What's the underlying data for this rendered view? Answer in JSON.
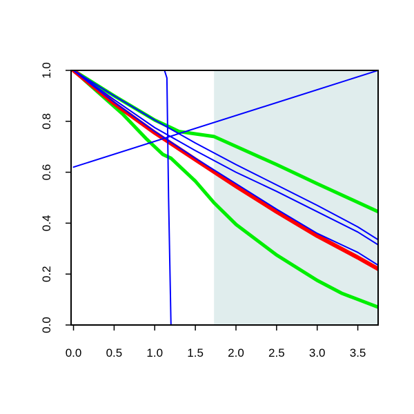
{
  "chart_data": {
    "type": "line",
    "title": "",
    "xlabel": "",
    "ylabel": "",
    "xlim": [
      -0.03,
      3.75
    ],
    "ylim": [
      0,
      1
    ],
    "x_ticks": [
      0,
      0.5,
      1,
      1.5,
      2,
      2.5,
      3,
      3.5
    ],
    "x_tick_labels": [
      "0.0",
      "0.5",
      "1.0",
      "1.5",
      "2.0",
      "2.5",
      "3.0",
      "3.5"
    ],
    "y_ticks": [
      0,
      0.2,
      0.4,
      0.6,
      0.8,
      1
    ],
    "y_tick_labels": [
      "0.0",
      "0.2",
      "0.4",
      "0.6",
      "0.8",
      "1.0"
    ],
    "grid": false,
    "legend": "none",
    "shaded_region": {
      "x_from": 1.73,
      "x_to": 3.75,
      "color": "#e0eded"
    },
    "series": [
      {
        "color": "#00ee00",
        "width": 5,
        "points": [
          [
            0,
            1
          ],
          [
            0.5,
            0.9
          ],
          [
            1,
            0.805
          ],
          [
            1.3,
            0.76
          ],
          [
            1.73,
            0.74
          ],
          [
            2.5,
            0.63
          ],
          [
            3,
            0.555
          ],
          [
            3.75,
            0.445
          ]
        ]
      },
      {
        "color": "#00ee00",
        "width": 5,
        "points": [
          [
            0,
            1
          ],
          [
            0.3,
            0.915
          ],
          [
            0.6,
            0.83
          ],
          [
            0.9,
            0.73
          ],
          [
            1.1,
            0.67
          ],
          [
            1.2,
            0.655
          ],
          [
            1.5,
            0.565
          ],
          [
            1.73,
            0.48
          ],
          [
            2,
            0.395
          ],
          [
            2.5,
            0.275
          ],
          [
            3,
            0.175
          ],
          [
            3.3,
            0.125
          ],
          [
            3.75,
            0.07
          ]
        ]
      },
      {
        "color": "#ff0000",
        "width": 6,
        "points": [
          [
            0,
            1
          ],
          [
            0.5,
            0.87
          ],
          [
            1,
            0.755
          ],
          [
            1.5,
            0.65
          ],
          [
            2,
            0.545
          ],
          [
            2.5,
            0.445
          ],
          [
            3,
            0.35
          ],
          [
            3.5,
            0.265
          ],
          [
            3.75,
            0.22
          ]
        ]
      },
      {
        "color": "#0000ff",
        "width": 2,
        "points": [
          [
            0,
            1
          ],
          [
            0.5,
            0.9
          ],
          [
            1,
            0.805
          ],
          [
            1.5,
            0.715
          ],
          [
            2,
            0.63
          ],
          [
            2.5,
            0.55
          ],
          [
            3,
            0.47
          ],
          [
            3.5,
            0.385
          ],
          [
            3.75,
            0.335
          ]
        ]
      },
      {
        "color": "#0000ff",
        "width": 2,
        "points": [
          [
            0,
            1
          ],
          [
            0.5,
            0.885
          ],
          [
            1,
            0.775
          ],
          [
            1.5,
            0.685
          ],
          [
            2,
            0.6
          ],
          [
            2.5,
            0.525
          ],
          [
            3,
            0.445
          ],
          [
            3.5,
            0.365
          ],
          [
            3.75,
            0.315
          ]
        ]
      },
      {
        "color": "#0000ff",
        "width": 2,
        "points": [
          [
            0,
            1
          ],
          [
            0.5,
            0.875
          ],
          [
            1,
            0.76
          ],
          [
            1.5,
            0.655
          ],
          [
            2,
            0.555
          ],
          [
            2.5,
            0.455
          ],
          [
            3,
            0.36
          ],
          [
            3.5,
            0.285
          ],
          [
            3.75,
            0.235
          ]
        ]
      },
      {
        "color": "#0000ff",
        "width": 2,
        "points": [
          [
            0,
            0.62
          ],
          [
            3.75,
            1
          ]
        ]
      },
      {
        "color": "#0000ff",
        "width": 2,
        "points": [
          [
            0,
            1
          ],
          [
            1.12,
            1
          ],
          [
            1.15,
            0.97
          ],
          [
            1.17,
            0.5
          ],
          [
            1.2,
            0
          ],
          [
            3.75,
            0
          ]
        ]
      }
    ]
  }
}
